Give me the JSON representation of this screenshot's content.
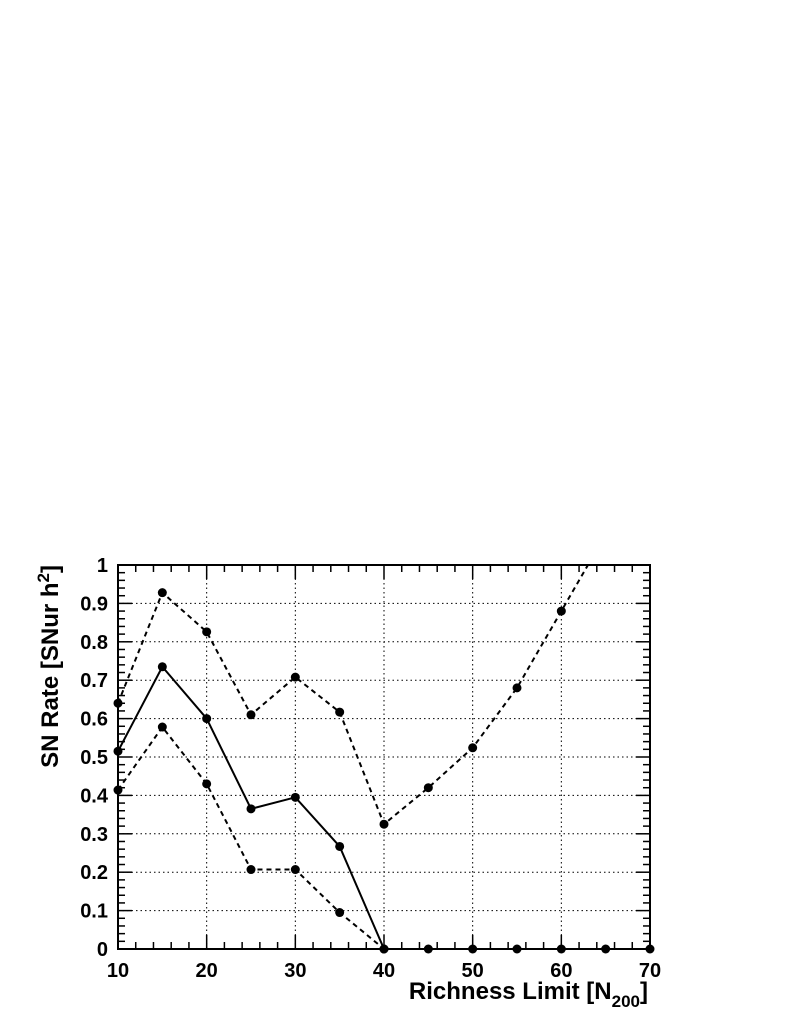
{
  "chart_data": {
    "type": "line",
    "xlabel": "Richness Limit [N",
    "xlabel_sub": "200",
    "xlabel_end": "]",
    "ylabel": "SN Rate [SNur h",
    "ylabel_sup": "2",
    "ylabel_end": "]",
    "xlim": [
      10,
      70
    ],
    "ylim": [
      0,
      1
    ],
    "grid": true,
    "x_ticks": [
      10,
      20,
      30,
      40,
      50,
      60,
      70
    ],
    "y_ticks": [
      0,
      0.1,
      0.2,
      0.3,
      0.4,
      0.5,
      0.6,
      0.7,
      0.8,
      0.9,
      1
    ],
    "x_tick_labels": [
      "10",
      "20",
      "30",
      "40",
      "50",
      "60",
      "70"
    ],
    "y_tick_labels": [
      "0",
      "0.1",
      "0.2",
      "0.3",
      "0.4",
      "0.5",
      "0.6",
      "0.7",
      "0.8",
      "0.9",
      "1"
    ],
    "series": [
      {
        "style": "solid",
        "x": [
          10,
          15,
          20,
          25,
          30,
          35,
          40
        ],
        "y": [
          0.515,
          0.735,
          0.6,
          0.365,
          0.395,
          0.267,
          0
        ]
      },
      {
        "style": "dashed",
        "x": [
          10,
          15,
          20,
          25,
          30,
          35,
          40,
          45,
          50,
          55,
          60,
          63
        ],
        "y": [
          0.64,
          0.928,
          0.826,
          0.61,
          0.708,
          0.617,
          0.325,
          0.42,
          0.524,
          0.68,
          0.88,
          1.0
        ],
        "markers": [
          true,
          true,
          true,
          true,
          true,
          true,
          true,
          true,
          true,
          true,
          true,
          false
        ]
      },
      {
        "style": "dashed",
        "x": [
          10,
          15,
          20,
          25,
          30,
          35,
          40,
          45,
          50,
          55,
          60,
          65,
          70
        ],
        "y": [
          0.414,
          0.578,
          0.43,
          0.207,
          0.207,
          0.095,
          0,
          0,
          0,
          0,
          0,
          0,
          0
        ]
      }
    ]
  }
}
